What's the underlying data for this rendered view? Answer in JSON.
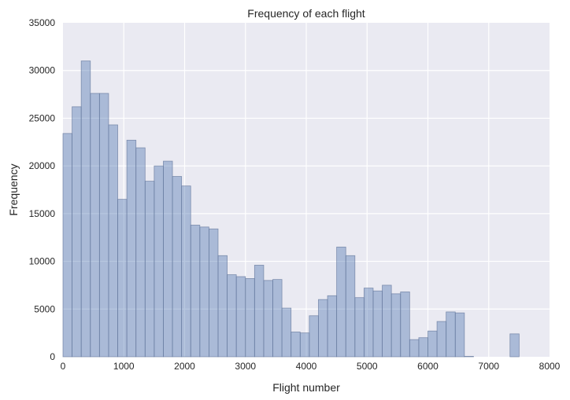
{
  "chart_data": {
    "type": "bar",
    "title": "Frequency of each flight",
    "xlabel": "Flight number",
    "ylabel": "Frequency",
    "xlim": [
      0,
      8000
    ],
    "ylim": [
      0,
      35000
    ],
    "xticks": [
      0,
      1000,
      2000,
      3000,
      4000,
      5000,
      6000,
      7000,
      8000
    ],
    "yticks": [
      0,
      5000,
      10000,
      15000,
      20000,
      25000,
      30000,
      35000
    ],
    "grid": true,
    "bin_width": 150,
    "bin_start": 0,
    "values": [
      23400,
      26200,
      31000,
      27600,
      27600,
      24300,
      16500,
      22700,
      21900,
      18400,
      20000,
      20500,
      18900,
      17900,
      13800,
      13600,
      13400,
      10600,
      8600,
      8400,
      8200,
      9600,
      8000,
      8100,
      5100,
      2600,
      2500,
      4300,
      6000,
      6400,
      11500,
      10600,
      6200,
      7200,
      6900,
      7500,
      6600,
      6800,
      1800,
      2000,
      2700,
      3700,
      4700,
      4600,
      50,
      0,
      0,
      0,
      0,
      2400
    ],
    "bar_color": "#4c72b0",
    "background_color": "#eaeaf2"
  }
}
